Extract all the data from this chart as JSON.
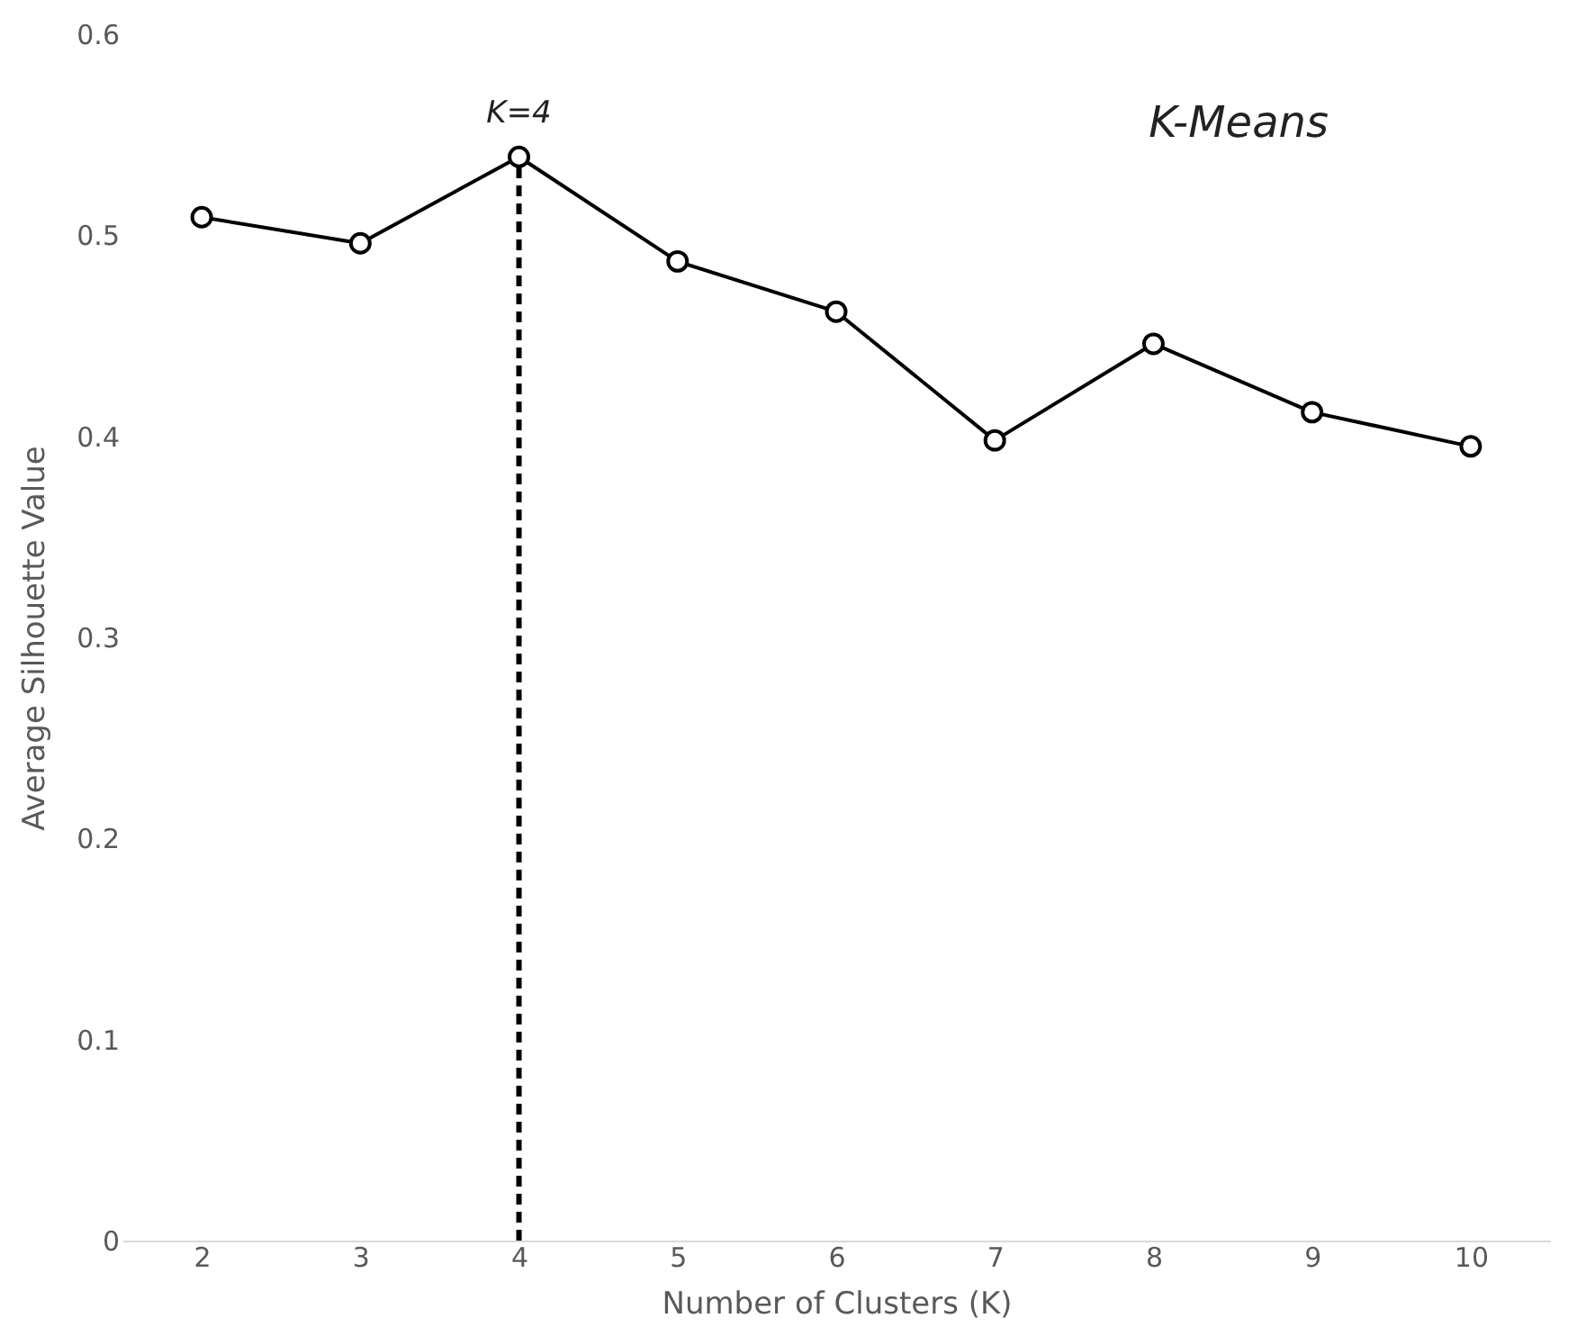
{
  "chart_data": {
    "type": "line",
    "xlabel": "Number of Clusters (K)",
    "ylabel": "Average Silhouette Value",
    "x": [
      2,
      3,
      4,
      5,
      6,
      7,
      8,
      9,
      10
    ],
    "series": [
      {
        "color": "#000000",
        "values": [
          0.509,
          0.496,
          0.539,
          0.487,
          0.462,
          0.398,
          0.446,
          0.412,
          0.395
        ]
      }
    ],
    "xlim": [
      1.5,
      10.5
    ],
    "xticks": [
      2,
      3,
      4,
      5,
      6,
      7,
      8,
      9,
      10
    ],
    "ylim": [
      0,
      0.6
    ],
    "yticks": [
      0,
      0.1,
      0.2,
      0.3,
      0.4,
      0.5,
      0.6
    ],
    "ref_lines": [
      {
        "axis": "x",
        "value": 4,
        "label": "K=4",
        "color": "#000000",
        "line_style": "dashed"
      }
    ],
    "annotations": [
      "K-Means"
    ],
    "marker": "circle",
    "line_style": "solid",
    "grid": false
  }
}
